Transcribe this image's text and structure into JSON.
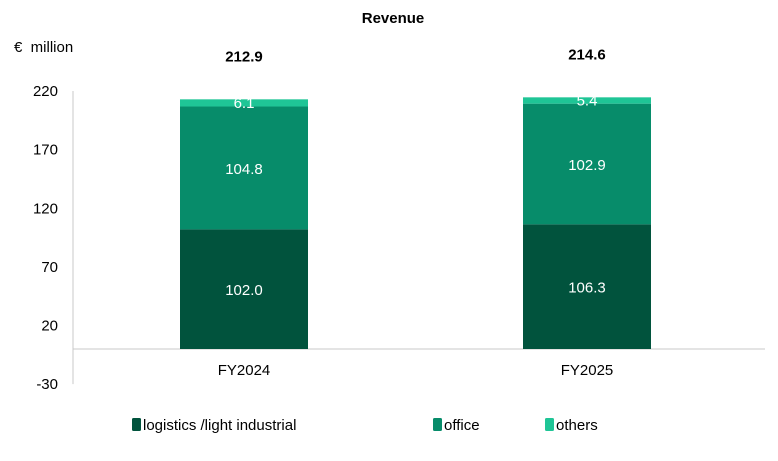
{
  "chart_data": {
    "type": "bar",
    "stacked": true,
    "title": "Revenue",
    "ylabel": "€  million",
    "xlabel": "",
    "categories": [
      "FY2024",
      "FY2025"
    ],
    "series": [
      {
        "name": "logistics /light industrial",
        "values": [
          102.0,
          106.3
        ],
        "labels": [
          "102.0",
          "106.3"
        ],
        "color": "#01533d"
      },
      {
        "name": "office",
        "values": [
          104.8,
          102.9
        ],
        "labels": [
          "104.8",
          "102.9"
        ],
        "color": "#078c6a"
      },
      {
        "name": "others",
        "values": [
          6.1,
          5.4
        ],
        "labels": [
          "6.1",
          "5.4"
        ],
        "color": "#1fc596"
      }
    ],
    "totals": [
      "212.9",
      "214.6"
    ],
    "ylim": [
      -30,
      220
    ],
    "yticks": [
      "220",
      "170",
      "120",
      "70",
      "20",
      "-30"
    ],
    "ytick_values": [
      220,
      170,
      120,
      70,
      20,
      -30
    ],
    "grid": false,
    "legend_position": "bottom"
  }
}
